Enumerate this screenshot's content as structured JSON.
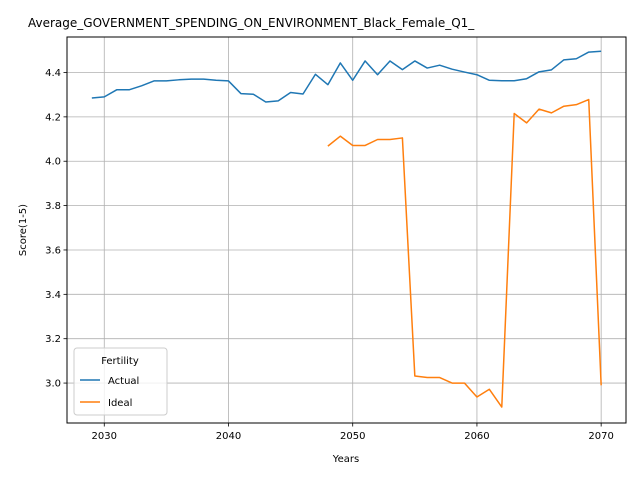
{
  "chart_data": {
    "type": "line",
    "title": "Average_GOVERNMENT_SPENDING_ON_ENVIRONMENT_Black_Female_Q1_",
    "xlabel": "Years",
    "ylabel": "Score(1-5)",
    "xlim": [
      2027,
      2072
    ],
    "ylim": [
      2.82,
      4.56
    ],
    "xticks": [
      2030,
      2040,
      2050,
      2060,
      2070
    ],
    "yticks": [
      3.0,
      3.2,
      3.4,
      3.6,
      3.8,
      4.0,
      4.2,
      4.4
    ],
    "xtick_labels": [
      "2030",
      "2040",
      "2050",
      "2060",
      "2070"
    ],
    "ytick_labels": [
      "3.0",
      "3.2",
      "3.4",
      "3.6",
      "3.8",
      "4.0",
      "4.2",
      "4.4"
    ],
    "grid": true,
    "legend": {
      "title": "Fertility",
      "position": "lower-left"
    },
    "series": [
      {
        "name": "Actual",
        "color": "#1f77b4",
        "points": [
          [
            2029,
            4.285
          ],
          [
            2030,
            4.29
          ],
          [
            2031,
            4.322
          ],
          [
            2032,
            4.322
          ],
          [
            2033,
            4.34
          ],
          [
            2034,
            4.362
          ],
          [
            2035,
            4.362
          ],
          [
            2036,
            4.367
          ],
          [
            2037,
            4.37
          ],
          [
            2038,
            4.37
          ],
          [
            2039,
            4.365
          ],
          [
            2040,
            4.362
          ],
          [
            2041,
            4.305
          ],
          [
            2042,
            4.302
          ],
          [
            2043,
            4.267
          ],
          [
            2044,
            4.272
          ],
          [
            2045,
            4.31
          ],
          [
            2046,
            4.303
          ],
          [
            2047,
            4.392
          ],
          [
            2048,
            4.345
          ],
          [
            2049,
            4.443
          ],
          [
            2050,
            4.365
          ],
          [
            2051,
            4.452
          ],
          [
            2052,
            4.39
          ],
          [
            2053,
            4.452
          ],
          [
            2054,
            4.413
          ],
          [
            2055,
            4.452
          ],
          [
            2056,
            4.42
          ],
          [
            2057,
            4.433
          ],
          [
            2058,
            4.415
          ],
          [
            2059,
            4.402
          ],
          [
            2060,
            4.39
          ],
          [
            2061,
            4.365
          ],
          [
            2062,
            4.363
          ],
          [
            2063,
            4.363
          ],
          [
            2064,
            4.372
          ],
          [
            2065,
            4.403
          ],
          [
            2066,
            4.412
          ],
          [
            2067,
            4.457
          ],
          [
            2068,
            4.462
          ],
          [
            2069,
            4.492
          ],
          [
            2070,
            4.496
          ]
        ]
      },
      {
        "name": "Ideal",
        "color": "#ff7f0e",
        "points": [
          [
            2048,
            4.068
          ],
          [
            2049,
            4.113
          ],
          [
            2050,
            4.071
          ],
          [
            2051,
            4.071
          ],
          [
            2052,
            4.098
          ],
          [
            2053,
            4.098
          ],
          [
            2054,
            4.105
          ],
          [
            2055,
            3.032
          ],
          [
            2056,
            3.025
          ],
          [
            2057,
            3.025
          ],
          [
            2058,
            3.0
          ],
          [
            2059,
            3.0
          ],
          [
            2060,
            2.937
          ],
          [
            2061,
            2.972
          ],
          [
            2062,
            2.892
          ],
          [
            2063,
            4.215
          ],
          [
            2064,
            4.173
          ],
          [
            2065,
            4.235
          ],
          [
            2066,
            4.218
          ],
          [
            2067,
            4.248
          ],
          [
            2068,
            4.255
          ],
          [
            2069,
            4.278
          ],
          [
            2070,
            2.99
          ]
        ]
      }
    ]
  }
}
